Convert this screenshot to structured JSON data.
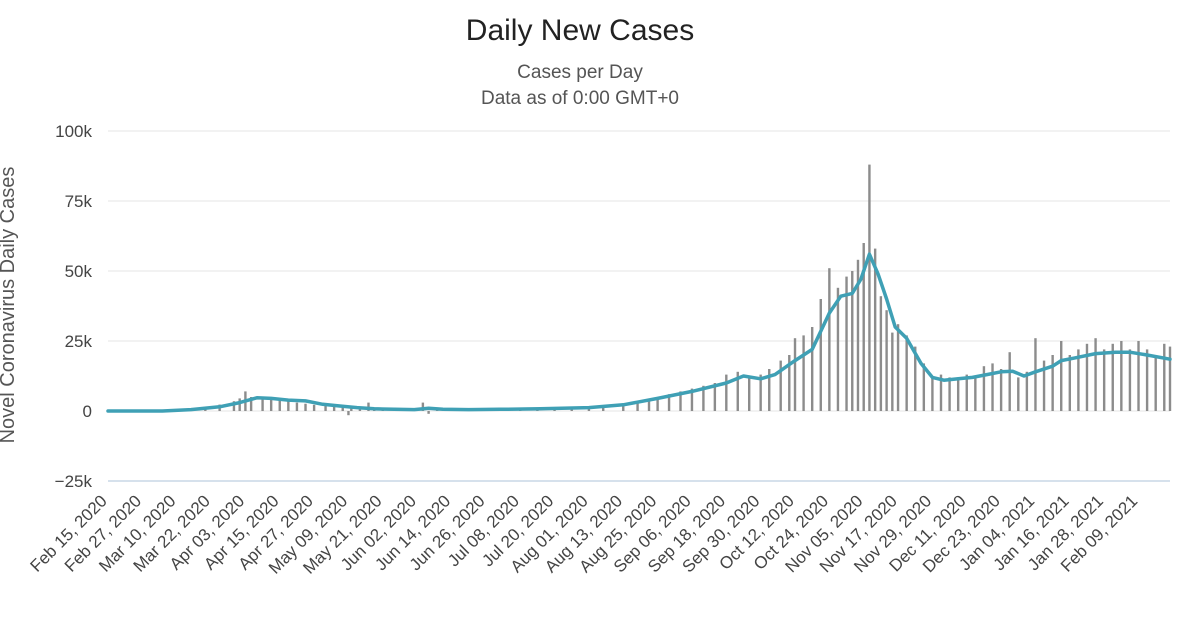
{
  "chart_data": {
    "type": "bar",
    "title": "Daily New Cases",
    "subtitle": [
      "Cases per Day",
      "Data as of 0:00 GMT+0"
    ],
    "ylabel": "Novel Coronavirus Daily Cases",
    "xlabel": "",
    "ylim": [
      -25000,
      100000
    ],
    "yticks": [
      {
        "value": 100000,
        "label": "100k"
      },
      {
        "value": 75000,
        "label": "75k"
      },
      {
        "value": 50000,
        "label": "50k"
      },
      {
        "value": 25000,
        "label": "25k"
      },
      {
        "value": 0,
        "label": "0"
      },
      {
        "value": -25000,
        "label": "−25k"
      }
    ],
    "x_start": "2020-02-15",
    "x_end": "2021-02-20",
    "xtick_labels": [
      "Feb 15, 2020",
      "Feb 27, 2020",
      "Mar 10, 2020",
      "Mar 22, 2020",
      "Apr 03, 2020",
      "Apr 15, 2020",
      "Apr 27, 2020",
      "May 09, 2020",
      "May 21, 2020",
      "Jun 02, 2020",
      "Jun 14, 2020",
      "Jun 26, 2020",
      "Jul 08, 2020",
      "Jul 20, 2020",
      "Aug 01, 2020",
      "Aug 13, 2020",
      "Aug 25, 2020",
      "Sep 06, 2020",
      "Sep 18, 2020",
      "Sep 30, 2020",
      "Oct 12, 2020",
      "Oct 24, 2020",
      "Nov 05, 2020",
      "Nov 17, 2020",
      "Nov 29, 2020",
      "Dec 11, 2020",
      "Dec 23, 2020",
      "Jan 04, 2021",
      "Jan 16, 2021",
      "Jan 28, 2021",
      "Feb 09, 2021"
    ],
    "grid": true,
    "series": [
      {
        "kind": "bar",
        "color": "#8c8c8c",
        "points": [
          [
            "2020-02-15",
            0
          ],
          [
            "2020-02-20",
            0
          ],
          [
            "2020-02-27",
            10
          ],
          [
            "2020-03-05",
            100
          ],
          [
            "2020-03-10",
            300
          ],
          [
            "2020-03-15",
            700
          ],
          [
            "2020-03-20",
            1200
          ],
          [
            "2020-03-25",
            2300
          ],
          [
            "2020-03-30",
            3500
          ],
          [
            "2020-04-01",
            4500
          ],
          [
            "2020-04-03",
            7000
          ],
          [
            "2020-04-05",
            5000
          ],
          [
            "2020-04-09",
            5000
          ],
          [
            "2020-04-12",
            4200
          ],
          [
            "2020-04-15",
            4300
          ],
          [
            "2020-04-18",
            3900
          ],
          [
            "2020-04-21",
            3000
          ],
          [
            "2020-04-24",
            2600
          ],
          [
            "2020-04-27",
            2200
          ],
          [
            "2020-05-01",
            1900
          ],
          [
            "2020-05-04",
            1500
          ],
          [
            "2020-05-07",
            1100
          ],
          [
            "2020-05-09",
            -1500
          ],
          [
            "2020-05-10",
            1000
          ],
          [
            "2020-05-13",
            900
          ],
          [
            "2020-05-16",
            3000
          ],
          [
            "2020-05-18",
            800
          ],
          [
            "2020-05-21",
            700
          ],
          [
            "2020-05-25",
            600
          ],
          [
            "2020-05-30",
            500
          ],
          [
            "2020-06-02",
            400
          ],
          [
            "2020-06-04",
            3000
          ],
          [
            "2020-06-06",
            -1000
          ],
          [
            "2020-06-09",
            800
          ],
          [
            "2020-06-14",
            400
          ],
          [
            "2020-06-20",
            500
          ],
          [
            "2020-06-26",
            600
          ],
          [
            "2020-07-03",
            700
          ],
          [
            "2020-07-08",
            800
          ],
          [
            "2020-07-14",
            900
          ],
          [
            "2020-07-20",
            1000
          ],
          [
            "2020-07-26",
            1100
          ],
          [
            "2020-08-01",
            1500
          ],
          [
            "2020-08-06",
            1800
          ],
          [
            "2020-08-13",
            2500
          ],
          [
            "2020-08-18",
            3500
          ],
          [
            "2020-08-22",
            4200
          ],
          [
            "2020-08-25",
            5000
          ],
          [
            "2020-08-29",
            6000
          ],
          [
            "2020-09-02",
            7000
          ],
          [
            "2020-09-06",
            8000
          ],
          [
            "2020-09-10",
            9000
          ],
          [
            "2020-09-14",
            10000
          ],
          [
            "2020-09-18",
            13000
          ],
          [
            "2020-09-22",
            14000
          ],
          [
            "2020-09-26",
            12000
          ],
          [
            "2020-09-30",
            13000
          ],
          [
            "2020-10-03",
            15000
          ],
          [
            "2020-10-07",
            18000
          ],
          [
            "2020-10-10",
            20000
          ],
          [
            "2020-10-12",
            26000
          ],
          [
            "2020-10-15",
            27000
          ],
          [
            "2020-10-18",
            30000
          ],
          [
            "2020-10-21",
            40000
          ],
          [
            "2020-10-24",
            51000
          ],
          [
            "2020-10-27",
            44000
          ],
          [
            "2020-10-30",
            48000
          ],
          [
            "2020-11-01",
            50000
          ],
          [
            "2020-11-03",
            54000
          ],
          [
            "2020-11-05",
            60000
          ],
          [
            "2020-11-07",
            88000
          ],
          [
            "2020-11-09",
            58000
          ],
          [
            "2020-11-11",
            41000
          ],
          [
            "2020-11-13",
            36000
          ],
          [
            "2020-11-15",
            28000
          ],
          [
            "2020-11-17",
            31000
          ],
          [
            "2020-11-20",
            27000
          ],
          [
            "2020-11-23",
            23000
          ],
          [
            "2020-11-26",
            17000
          ],
          [
            "2020-11-29",
            12000
          ],
          [
            "2020-12-02",
            13000
          ],
          [
            "2020-12-05",
            12000
          ],
          [
            "2020-12-08",
            12000
          ],
          [
            "2020-12-11",
            13000
          ],
          [
            "2020-12-14",
            12000
          ],
          [
            "2020-12-17",
            16000
          ],
          [
            "2020-12-20",
            17000
          ],
          [
            "2020-12-23",
            15000
          ],
          [
            "2020-12-26",
            21000
          ],
          [
            "2020-12-29",
            12000
          ],
          [
            "2021-01-01",
            14000
          ],
          [
            "2021-01-04",
            26000
          ],
          [
            "2021-01-07",
            18000
          ],
          [
            "2021-01-10",
            20000
          ],
          [
            "2021-01-13",
            25000
          ],
          [
            "2021-01-16",
            20000
          ],
          [
            "2021-01-19",
            22000
          ],
          [
            "2021-01-22",
            24000
          ],
          [
            "2021-01-25",
            26000
          ],
          [
            "2021-01-28",
            22000
          ],
          [
            "2021-01-31",
            24000
          ],
          [
            "2021-02-03",
            25000
          ],
          [
            "2021-02-06",
            22000
          ],
          [
            "2021-02-09",
            25000
          ],
          [
            "2021-02-12",
            22000
          ],
          [
            "2021-02-15",
            20000
          ],
          [
            "2021-02-18",
            24000
          ],
          [
            "2021-02-20",
            23000
          ]
        ]
      },
      {
        "kind": "line",
        "color": "#3fa0b5",
        "points": [
          [
            "2020-02-15",
            0
          ],
          [
            "2020-03-05",
            0
          ],
          [
            "2020-03-15",
            500
          ],
          [
            "2020-03-25",
            1500
          ],
          [
            "2020-04-01",
            3000
          ],
          [
            "2020-04-07",
            4700
          ],
          [
            "2020-04-12",
            4500
          ],
          [
            "2020-04-18",
            3900
          ],
          [
            "2020-04-24",
            3600
          ],
          [
            "2020-04-30",
            2400
          ],
          [
            "2020-05-06",
            1800
          ],
          [
            "2020-05-12",
            1200
          ],
          [
            "2020-05-18",
            800
          ],
          [
            "2020-05-25",
            600
          ],
          [
            "2020-06-01",
            500
          ],
          [
            "2020-06-06",
            1000
          ],
          [
            "2020-06-11",
            600
          ],
          [
            "2020-06-20",
            500
          ],
          [
            "2020-07-01",
            600
          ],
          [
            "2020-07-15",
            800
          ],
          [
            "2020-08-01",
            1200
          ],
          [
            "2020-08-13",
            2200
          ],
          [
            "2020-08-25",
            4500
          ],
          [
            "2020-09-06",
            7000
          ],
          [
            "2020-09-18",
            10000
          ],
          [
            "2020-09-24",
            12500
          ],
          [
            "2020-09-30",
            11500
          ],
          [
            "2020-10-05",
            13000
          ],
          [
            "2020-10-12",
            18000
          ],
          [
            "2020-10-18",
            22000
          ],
          [
            "2020-10-24",
            35000
          ],
          [
            "2020-10-28",
            41000
          ],
          [
            "2020-11-01",
            42000
          ],
          [
            "2020-11-04",
            47000
          ],
          [
            "2020-11-07",
            56000
          ],
          [
            "2020-11-10",
            49000
          ],
          [
            "2020-11-13",
            40000
          ],
          [
            "2020-11-16",
            30000
          ],
          [
            "2020-11-20",
            26000
          ],
          [
            "2020-11-25",
            17000
          ],
          [
            "2020-11-29",
            12000
          ],
          [
            "2020-12-03",
            11000
          ],
          [
            "2020-12-08",
            11500
          ],
          [
            "2020-12-13",
            12000
          ],
          [
            "2020-12-18",
            13000
          ],
          [
            "2020-12-23",
            14000
          ],
          [
            "2020-12-27",
            14200
          ],
          [
            "2020-12-31",
            12500
          ],
          [
            "2021-01-04",
            14000
          ],
          [
            "2021-01-10",
            16000
          ],
          [
            "2021-01-13",
            18000
          ],
          [
            "2021-01-18",
            19000
          ],
          [
            "2021-01-25",
            20500
          ],
          [
            "2021-02-01",
            21000
          ],
          [
            "2021-02-06",
            21000
          ],
          [
            "2021-02-12",
            20000
          ],
          [
            "2021-02-20",
            18500
          ]
        ]
      }
    ]
  }
}
